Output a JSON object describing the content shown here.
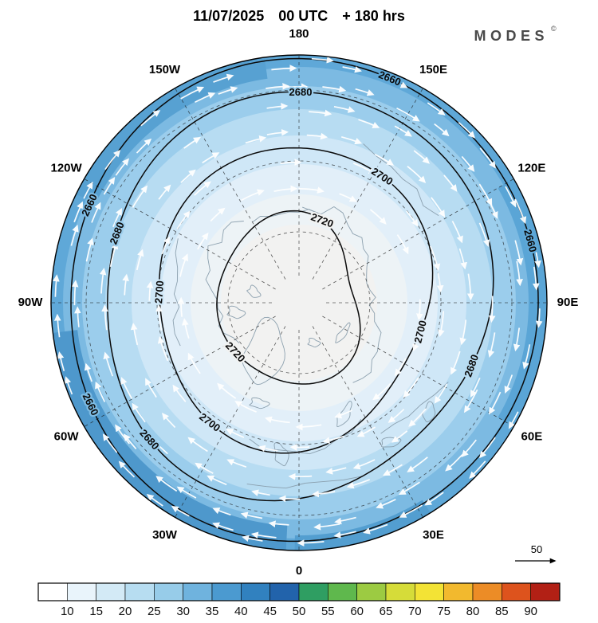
{
  "header": {
    "title": "11/07/2025 00 UTC + 180 hrs",
    "brand": "MODES",
    "brand_mark": "©"
  },
  "map": {
    "longitude_labels": [
      {
        "text": "180",
        "angle": 0
      },
      {
        "text": "150E",
        "angle": 30
      },
      {
        "text": "120E",
        "angle": 60
      },
      {
        "text": "90E",
        "angle": 90
      },
      {
        "text": "60E",
        "angle": 120
      },
      {
        "text": "30E",
        "angle": 150
      },
      {
        "text": "0",
        "angle": 180
      },
      {
        "text": "30W",
        "angle": 210
      },
      {
        "text": "60W",
        "angle": 240
      },
      {
        "text": "90W",
        "angle": 270
      },
      {
        "text": "120W",
        "angle": 300
      },
      {
        "text": "150W",
        "angle": 330
      }
    ]
  },
  "wind_scale": {
    "label": "50"
  },
  "chart_data": {
    "type": "map",
    "projection": "north-polar-stereographic",
    "title": "11/07/2025 00 UTC + 180 hrs",
    "description": "Northern Hemisphere polar map: height contours (solid black), wind speed shading (blue scale), white wind vector arrows circling the pole",
    "contour_levels": [
      2660,
      2680,
      2700,
      2720
    ],
    "contours": [
      {
        "level": "2660",
        "label_angles": [
          22,
          75,
          244,
          295
        ]
      },
      {
        "level": "2680",
        "label_angles": [
          0,
          110,
          228,
          291
        ]
      },
      {
        "level": "2700",
        "label_angles": [
          33,
          104,
          217,
          274
        ]
      },
      {
        "level": "2720",
        "label_angles": [
          20,
          227
        ]
      }
    ],
    "colorbar": {
      "tick_labels": [
        "10",
        "15",
        "20",
        "25",
        "30",
        "35",
        "40",
        "45",
        "50",
        "55",
        "60",
        "65",
        "70",
        "75",
        "80",
        "85",
        "90"
      ],
      "colors": [
        "#ffffff",
        "#e9f4fb",
        "#d3eaf6",
        "#b7ddf1",
        "#97cce9",
        "#6fb3de",
        "#4b9ad0",
        "#3181bf",
        "#2263ab",
        "#2f9e62",
        "#5fb84d",
        "#9ccb42",
        "#d6dc39",
        "#f3e335",
        "#f2b92e",
        "#ec8c26",
        "#dd531d",
        "#b22015"
      ]
    },
    "shading_rings": [
      {
        "r": 312,
        "color": "#5fa8d8"
      },
      {
        "r": 296,
        "color": "#7cbae2"
      },
      {
        "r": 272,
        "color": "#9bcdec"
      },
      {
        "r": 243,
        "color": "#b7dcf2"
      },
      {
        "r": 210,
        "color": "#cfe7f7"
      },
      {
        "r": 174,
        "color": "#e2eff9"
      },
      {
        "r": 136,
        "color": "#edf3f6"
      },
      {
        "r": 98,
        "color": "#f2f2f1"
      }
    ],
    "wind_direction": "clockwise",
    "wind_scale_reference": 50
  }
}
